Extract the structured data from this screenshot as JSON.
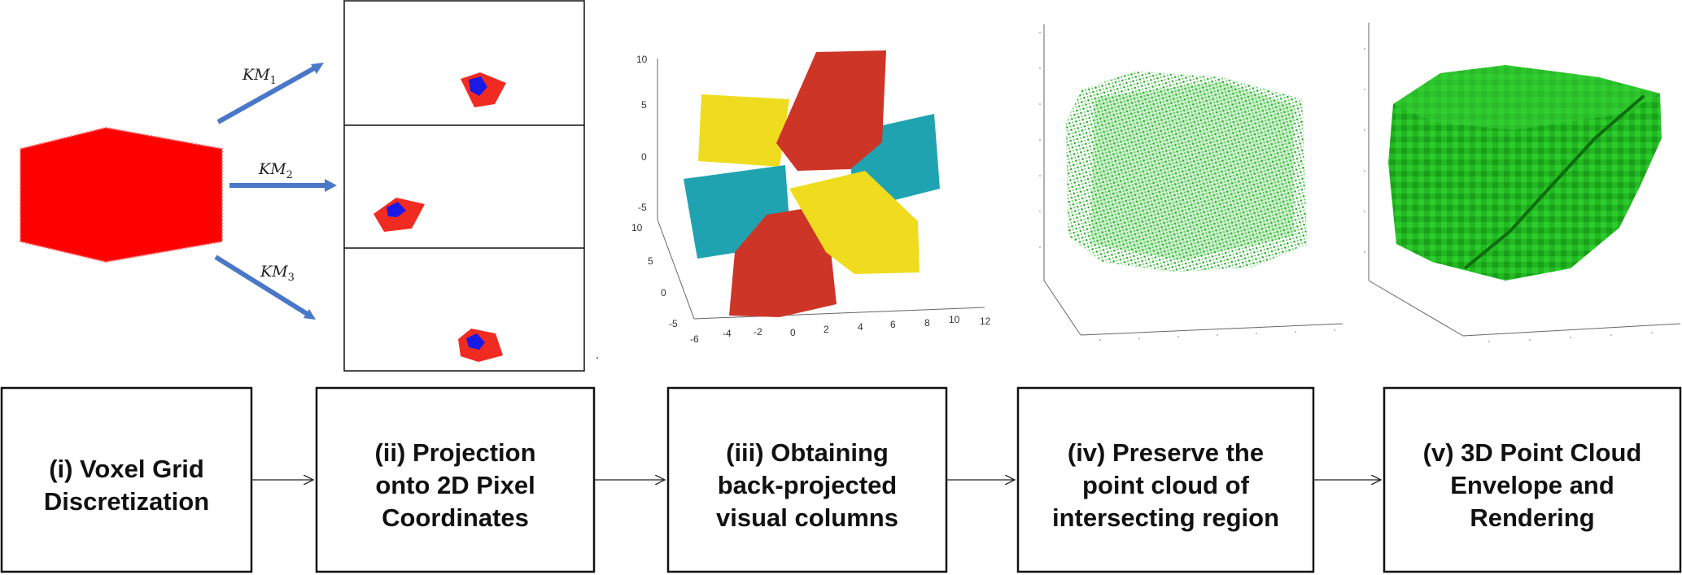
{
  "colors": {
    "voxel_red": "#ff0000",
    "silhouette_red": "#f22b22",
    "silhouette_blue": "#1a1ae6",
    "column_red": "#cd3527",
    "column_yellow": "#f0dc1e",
    "column_teal": "#1fa3b0",
    "cloud_green": "#3cc23c",
    "mesh_green": "#1fb51f",
    "km_arrow_blue": "#4a78c8"
  },
  "projections": [
    {
      "base": "KM",
      "sub": "1"
    },
    {
      "base": "KM",
      "sub": "2"
    },
    {
      "base": "KM",
      "sub": "3"
    }
  ],
  "plot_iii": {
    "z_ticks": [
      "10",
      "5",
      "0",
      "-5"
    ],
    "y_ticks": [
      "10",
      "5",
      "0",
      "-5"
    ],
    "x_ticks": [
      "-6",
      "-4",
      "-2",
      "0",
      "2",
      "4",
      "6",
      "8",
      "10",
      "12"
    ]
  },
  "steps": [
    {
      "id": "i",
      "lines": [
        "(i) Voxel Grid",
        "Discretization"
      ]
    },
    {
      "id": "ii",
      "lines": [
        "(ii) Projection",
        "onto 2D Pixel",
        "Coordinates"
      ]
    },
    {
      "id": "iii",
      "lines": [
        "(iii) Obtaining",
        "back-projected",
        "visual columns"
      ]
    },
    {
      "id": "iv",
      "lines": [
        "(iv) Preserve the",
        "point cloud of",
        "intersecting region"
      ]
    },
    {
      "id": "v",
      "lines": [
        "(v) 3D Point Cloud",
        "Envelope and",
        "Rendering"
      ]
    }
  ]
}
